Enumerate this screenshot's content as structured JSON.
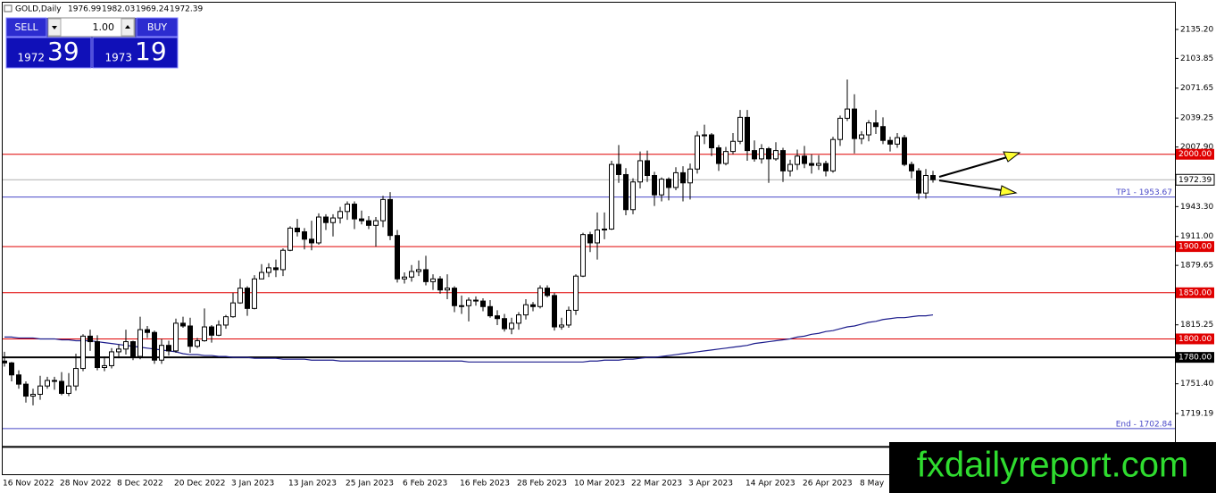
{
  "chart_data": {
    "type": "candlestick",
    "symbol": "GOLD,Daily",
    "categories": [
      "16 Nov 2022",
      null,
      null,
      null,
      null,
      null,
      null,
      null,
      "28 Nov 2022",
      null,
      null,
      null,
      null,
      null,
      null,
      null,
      "8 Dec 2022",
      null,
      null,
      null,
      null,
      null,
      null,
      null,
      "20 Dec 2022",
      null,
      null,
      null,
      null,
      null,
      null,
      null,
      "3 Jan 2023",
      null,
      null,
      null,
      null,
      null,
      null,
      null,
      "13 Jan 2023",
      null,
      null,
      null,
      null,
      null,
      null,
      null,
      "25 Jan 2023",
      null,
      null,
      null,
      null,
      null,
      null,
      null,
      "6 Feb 2023",
      null,
      null,
      null,
      null,
      null,
      null,
      null,
      "16 Feb 2023",
      null,
      null,
      null,
      null,
      null,
      null,
      null,
      "28 Feb 2023",
      null,
      null,
      null,
      null,
      null,
      null,
      null,
      "10 Mar 2023",
      null,
      null,
      null,
      null,
      null,
      null,
      null,
      "22 Mar 2023",
      null,
      null,
      null,
      null,
      null,
      null,
      null,
      "3 Apr 2023",
      null,
      null,
      null,
      null,
      null,
      null,
      null,
      "14 Apr 2023",
      null,
      null,
      null,
      null,
      null,
      null,
      null,
      "26 Apr 2023",
      null,
      null,
      null,
      null,
      null,
      null,
      null,
      "8 May",
      null,
      null,
      null,
      null,
      null,
      null,
      null,
      null,
      null,
      null
    ],
    "open": [
      1776,
      1774,
      1761,
      1751,
      1738,
      1740,
      1749,
      1755,
      1754,
      1741,
      1749,
      1768,
      1803,
      1797,
      1769,
      1771,
      1786,
      1789,
      1797,
      1781,
      1810,
      1807,
      1777,
      1793,
      1787,
      1817,
      1814,
      1792,
      1798,
      1813,
      1804,
      1815,
      1824,
      1839,
      1855,
      1833,
      1865,
      1872,
      1877,
      1875,
      1896,
      1920,
      1916,
      1908,
      1904,
      1932,
      1926,
      1931,
      1938,
      1946,
      1930,
      1928,
      1923,
      1928,
      1951,
      1912,
      1865,
      1867,
      1873,
      1875,
      1862,
      1865,
      1853,
      1855,
      1836,
      1836,
      1842,
      1841,
      1835,
      1825,
      1822,
      1811,
      1817,
      1826,
      1837,
      1835,
      1855,
      1847,
      1813,
      1815,
      1831,
      1868,
      1913,
      1904,
      1918,
      1919,
      1989,
      1978,
      1940,
      1970,
      1993,
      1977,
      1956,
      1973,
      1964,
      1980,
      1969,
      1984,
      2020,
      2021,
      2007,
      1990,
      2003,
      2014,
      2040,
      2004,
      1995,
      2006,
      1995,
      2004,
      1982,
      1989,
      1998,
      1990,
      1988,
      1990,
      1982,
      2016,
      2039,
      2049,
      2017,
      2021,
      2034,
      2030,
      2015,
      2011,
      2018,
      1989,
      1982,
      1958,
      1976.99
    ],
    "high": [
      1786,
      1775,
      1766,
      1754,
      1746,
      1760,
      1759,
      1759,
      1764,
      1763,
      1784,
      1805,
      1810,
      1804,
      1781,
      1790,
      1794,
      1810,
      1798,
      1824,
      1814,
      1809,
      1800,
      1798,
      1822,
      1824,
      1823,
      1801,
      1833,
      1815,
      1820,
      1826,
      1850,
      1865,
      1857,
      1869,
      1881,
      1882,
      1886,
      1898,
      1922,
      1930,
      1920,
      1928,
      1936,
      1935,
      1935,
      1943,
      1949,
      1949,
      1939,
      1933,
      1932,
      1955,
      1959,
      1918,
      1872,
      1880,
      1885,
      1890,
      1870,
      1868,
      1870,
      1857,
      1847,
      1845,
      1846,
      1844,
      1842,
      1831,
      1827,
      1823,
      1829,
      1843,
      1840,
      1858,
      1858,
      1850,
      1823,
      1835,
      1870,
      1915,
      1916,
      1937,
      1937,
      1993,
      2010,
      1985,
      1974,
      2003,
      2004,
      1981,
      1975,
      1975,
      1986,
      1987,
      1990,
      2025,
      2032,
      2023,
      2010,
      2008,
      2023,
      2048,
      2048,
      2015,
      2011,
      2008,
      2013,
      2007,
      1994,
      2005,
      2009,
      2000,
      1999,
      1993,
      2019,
      2042,
      2081,
      2065,
      2025,
      2037,
      2048,
      2040,
      2019,
      2023,
      2021,
      1992,
      1985,
      1984,
      1982.03
    ],
    "low": [
      1770,
      1754,
      1746,
      1731,
      1728,
      1734,
      1746,
      1745,
      1739,
      1738,
      1744,
      1765,
      1787,
      1766,
      1765,
      1768,
      1779,
      1783,
      1777,
      1778,
      1801,
      1773,
      1773,
      1782,
      1785,
      1812,
      1785,
      1790,
      1797,
      1796,
      1803,
      1811,
      1823,
      1838,
      1825,
      1832,
      1865,
      1867,
      1867,
      1868,
      1895,
      1911,
      1897,
      1896,
      1902,
      1918,
      1911,
      1925,
      1929,
      1919,
      1924,
      1919,
      1900,
      1921,
      1907,
      1861,
      1860,
      1862,
      1868,
      1858,
      1853,
      1849,
      1843,
      1829,
      1827,
      1819,
      1836,
      1830,
      1823,
      1815,
      1808,
      1805,
      1810,
      1821,
      1830,
      1833,
      1845,
      1809,
      1810,
      1812,
      1826,
      1867,
      1894,
      1886,
      1908,
      1918,
      1969,
      1934,
      1935,
      1963,
      1970,
      1944,
      1949,
      1950,
      1961,
      1949,
      1951,
      1979,
      2011,
      1998,
      1982,
      1988,
      2000,
      2011,
      1993,
      1992,
      1990,
      1969,
      1993,
      1970,
      1976,
      1983,
      1985,
      1979,
      1983,
      1976,
      1980,
      2009,
      2036,
      2001,
      2011,
      2014,
      2022,
      2011,
      2003,
      2007,
      1987,
      1974,
      1951,
      1952,
      1969.24
    ],
    "close": [
      1774,
      1761,
      1751,
      1738,
      1740,
      1749,
      1755,
      1754,
      1741,
      1749,
      1768,
      1803,
      1797,
      1769,
      1771,
      1786,
      1789,
      1797,
      1781,
      1810,
      1807,
      1777,
      1793,
      1787,
      1817,
      1814,
      1792,
      1798,
      1813,
      1804,
      1815,
      1824,
      1839,
      1855,
      1833,
      1865,
      1872,
      1877,
      1875,
      1896,
      1920,
      1916,
      1908,
      1904,
      1932,
      1926,
      1931,
      1938,
      1946,
      1930,
      1928,
      1923,
      1928,
      1951,
      1912,
      1865,
      1867,
      1873,
      1875,
      1862,
      1865,
      1853,
      1855,
      1836,
      1836,
      1842,
      1841,
      1835,
      1825,
      1822,
      1811,
      1817,
      1826,
      1837,
      1835,
      1855,
      1847,
      1813,
      1815,
      1831,
      1868,
      1913,
      1904,
      1918,
      1919,
      1989,
      1978,
      1940,
      1970,
      1993,
      1977,
      1956,
      1973,
      1964,
      1980,
      1969,
      1984,
      2020,
      2021,
      2007,
      1990,
      2003,
      2014,
      2040,
      2004,
      1995,
      2006,
      1995,
      2004,
      1982,
      1989,
      1998,
      1990,
      1988,
      1990,
      1982,
      2016,
      2039,
      2049,
      2017,
      2021,
      2034,
      2030,
      2015,
      2011,
      2018,
      1989,
      1982,
      1958,
      1977,
      1972.39
    ],
    "ma": {
      "color": "#1c1c8c",
      "values": [
        1802,
        1802,
        1801,
        1801,
        1801,
        1800,
        1800,
        1800,
        1799,
        1799,
        1798,
        1798,
        1798,
        1797,
        1796,
        1795,
        1794,
        1793,
        1792,
        1791,
        1790,
        1789,
        1788,
        1787,
        1786,
        1784,
        1783,
        1783,
        1782,
        1782,
        1781,
        1781,
        1780,
        1780,
        1780,
        1779,
        1779,
        1779,
        1779,
        1778,
        1778,
        1778,
        1778,
        1777,
        1777,
        1777,
        1777,
        1776,
        1776,
        1776,
        1776,
        1776,
        1776,
        1776,
        1776,
        1776,
        1776,
        1776,
        1776,
        1776,
        1776,
        1776,
        1776,
        1776,
        1776,
        1775,
        1775,
        1775,
        1775,
        1775,
        1775,
        1775,
        1775,
        1775,
        1775,
        1775,
        1775,
        1775,
        1775,
        1775,
        1775,
        1775,
        1776,
        1776,
        1777,
        1777,
        1777,
        1778,
        1778,
        1779,
        1780,
        1780,
        1781,
        1782,
        1783,
        1784,
        1785,
        1786,
        1787,
        1788,
        1789,
        1790,
        1791,
        1792,
        1793,
        1795,
        1796,
        1797,
        1798,
        1799,
        1800,
        1802,
        1803,
        1805,
        1806,
        1808,
        1809,
        1811,
        1813,
        1814,
        1816,
        1818,
        1819,
        1821,
        1822,
        1823,
        1823,
        1824,
        1825,
        1825,
        1826
      ]
    },
    "bull_color": "#ffffff",
    "bear_color": "#000000",
    "levels": [
      {
        "value": 2000,
        "label": "2000.00",
        "color": "#e00000",
        "label_position": "axis",
        "width": 1
      },
      {
        "value": 1900,
        "label": "1900.00",
        "color": "#e00000",
        "label_position": "axis",
        "width": 1
      },
      {
        "value": 1850,
        "label": "1850.00",
        "color": "#e00000",
        "label_position": "axis",
        "width": 1
      },
      {
        "value": 1800,
        "label": "1800.00",
        "color": "#e00000",
        "label_position": "axis",
        "width": 1
      },
      {
        "value": 1780,
        "label": "1780.00",
        "color": "#000000",
        "label_position": "axis",
        "width": 2
      },
      {
        "value": 1953.67,
        "label": "TP1 - 1953.67",
        "color": "#4848c8",
        "label_position": "inside",
        "width": 1
      },
      {
        "value": 1702.84,
        "label": "End - 1702.84",
        "color": "#4848c8",
        "label_position": "inside",
        "width": 1
      },
      {
        "value": 1683,
        "color": "#000000",
        "width": 2
      }
    ],
    "ylim": [
      1653.4,
      2164.2
    ],
    "yticks": [
      {
        "value": 2135.2,
        "label": "2135.20"
      },
      2103.85,
      2071.65,
      2039.25,
      {
        "value": 2007.9,
        "label": "2007.90"
      },
      {
        "value": 1943.3,
        "label": "1943.30"
      },
      {
        "value": 1911,
        "label": "1911.00"
      },
      1879.65,
      1815.25,
      {
        "value": 1751.4,
        "label": "1751.40"
      },
      1719.19
    ],
    "grid": false
  },
  "trade_panel": {
    "sell": "SELL",
    "buy": "BUY",
    "lot": "1.00",
    "sell_big": "1972",
    "sell_small": "39",
    "buy_big": "1973",
    "buy_small": "19"
  },
  "watermark": "fxdailyreport.com"
}
